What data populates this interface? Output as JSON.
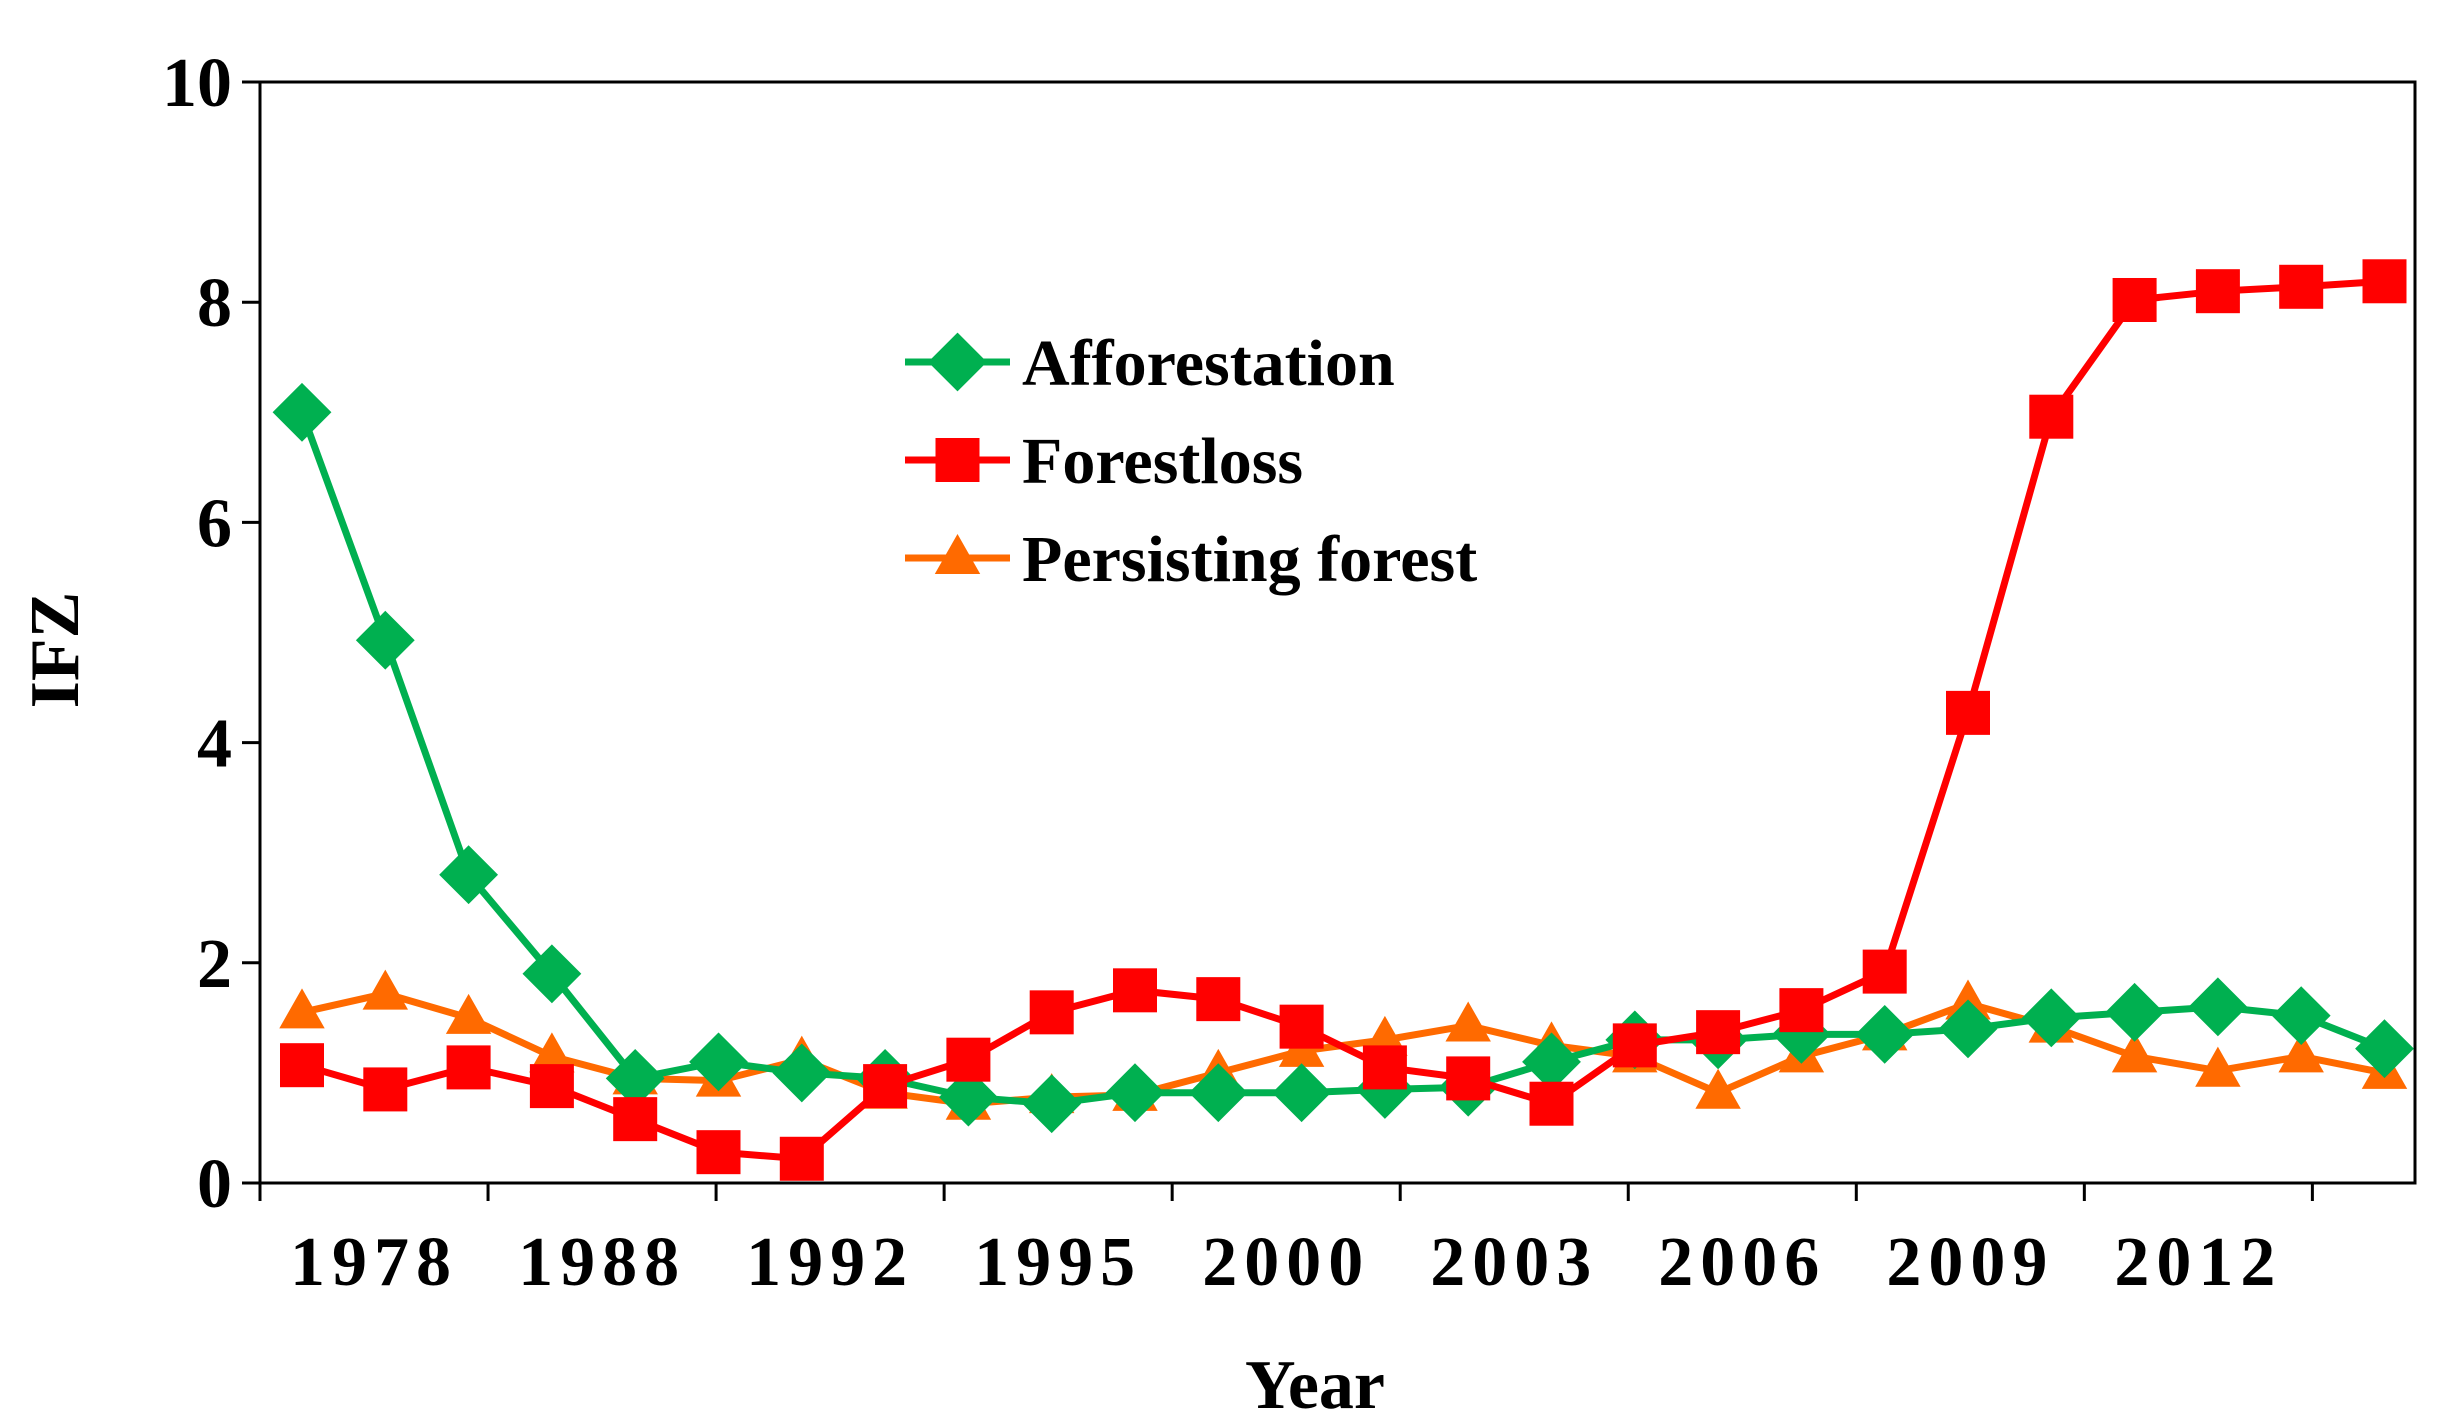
{
  "chart_data": {
    "type": "line",
    "title": "",
    "xlabel": "Year",
    "ylabel": "IFZ",
    "ylim": [
      0,
      10
    ],
    "yticks": [
      0,
      2,
      4,
      6,
      8,
      10
    ],
    "xtick_labels": [
      "1978",
      "1988",
      "1992",
      "1995",
      "2000",
      "2003",
      "2006",
      "2009",
      "2012"
    ],
    "n_points": 26,
    "legend_position": "upper-center",
    "grid": false,
    "series": [
      {
        "name": "Afforestation",
        "color": "#00B050",
        "marker": "diamond",
        "values": [
          7.0,
          4.93,
          2.8,
          1.9,
          0.95,
          1.1,
          1.0,
          0.95,
          0.78,
          0.72,
          0.82,
          0.82,
          0.82,
          0.85,
          0.87,
          1.1,
          1.3,
          1.3,
          1.35,
          1.35,
          1.4,
          1.5,
          1.55,
          1.6,
          1.52,
          1.22
        ]
      },
      {
        "name": "Forestloss",
        "color": "#FF0000",
        "marker": "square",
        "values": [
          1.07,
          0.85,
          1.05,
          0.88,
          0.58,
          0.28,
          0.22,
          0.88,
          1.12,
          1.55,
          1.75,
          1.67,
          1.42,
          1.05,
          0.95,
          0.72,
          1.25,
          1.37,
          1.57,
          1.92,
          4.27,
          6.96,
          8.02,
          8.1,
          8.14,
          8.19
        ]
      },
      {
        "name": "Persisting forest",
        "color": "#FF6A00",
        "marker": "triangle",
        "values": [
          1.55,
          1.72,
          1.5,
          1.15,
          0.95,
          0.93,
          1.12,
          0.82,
          0.72,
          0.78,
          0.8,
          1.0,
          1.2,
          1.3,
          1.43,
          1.25,
          1.15,
          0.82,
          1.15,
          1.35,
          1.63,
          1.42,
          1.15,
          1.02,
          1.15,
          1.0
        ]
      }
    ]
  }
}
